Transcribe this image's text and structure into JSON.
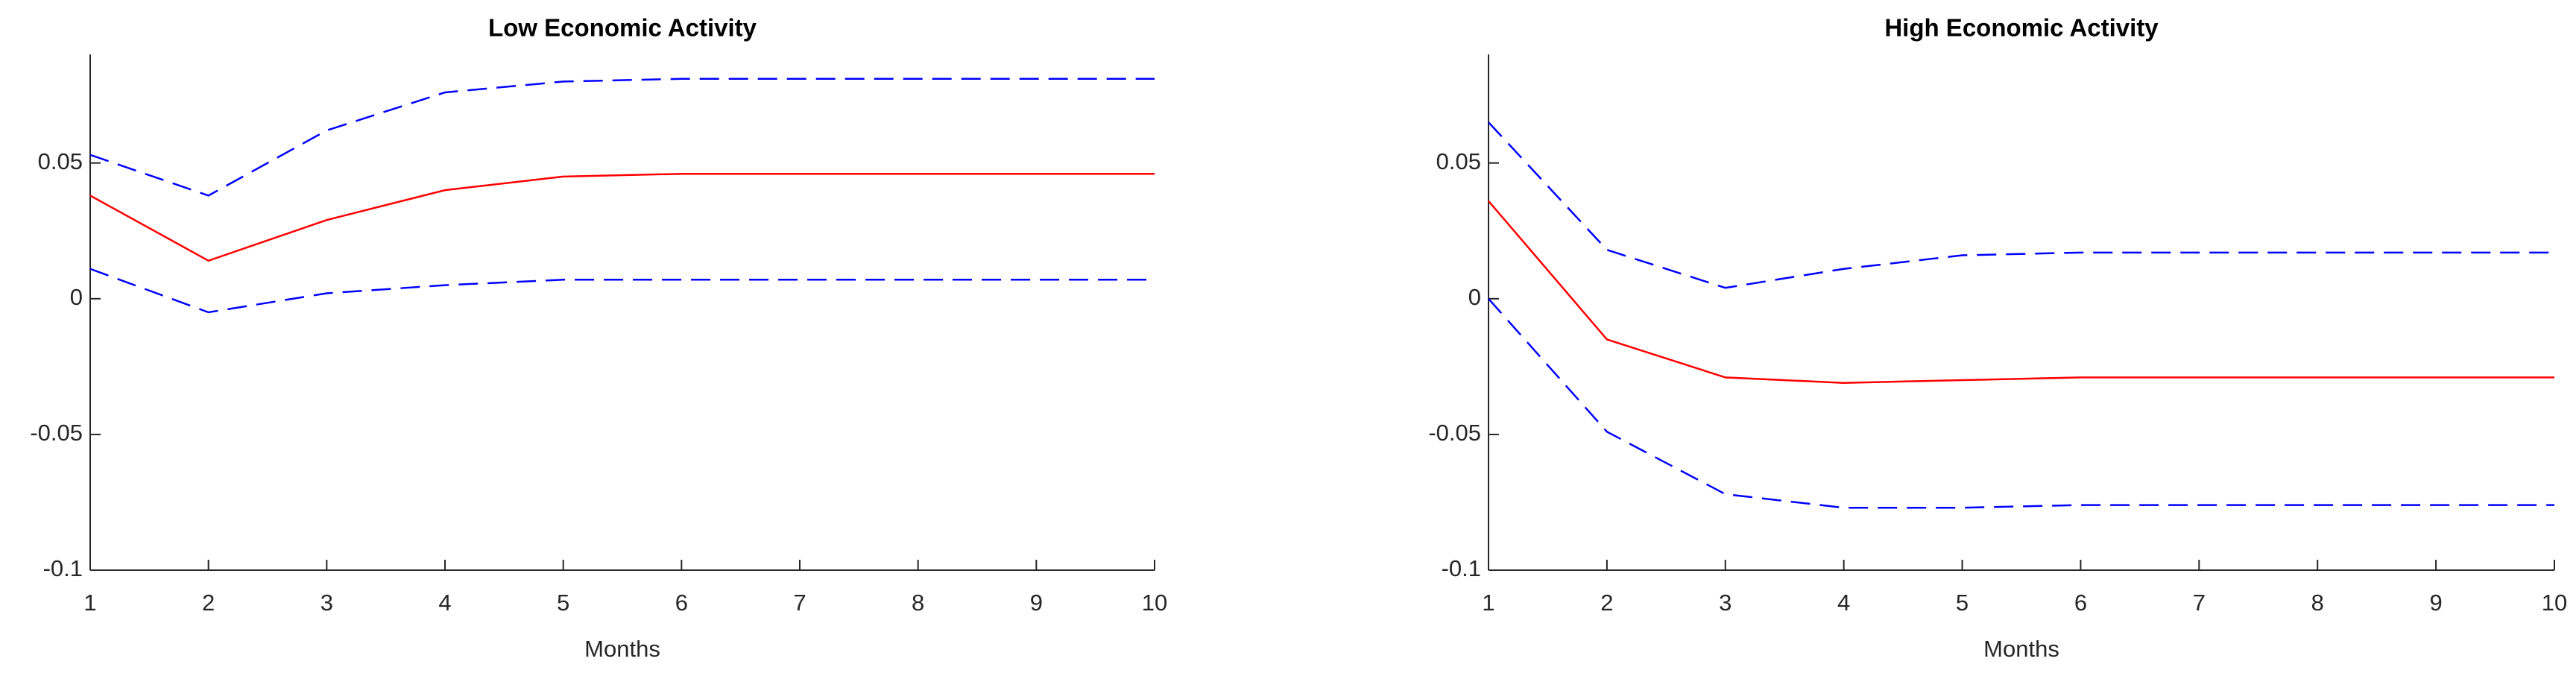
{
  "chart_data": [
    {
      "type": "line",
      "title": "Low Economic Activity",
      "xlabel": "Months",
      "x": [
        1,
        2,
        3,
        4,
        5,
        6,
        7,
        8,
        9,
        10
      ],
      "xlim": [
        1,
        10
      ],
      "xticks": [
        1,
        2,
        3,
        4,
        5,
        6,
        7,
        8,
        9,
        10
      ],
      "ylim": [
        -0.1,
        0.09
      ],
      "yticks": [
        -0.1,
        -0.05,
        0,
        0.05
      ],
      "series": [
        {
          "color": "#ff0000",
          "linestyle": "solid",
          "values": [
            0.038,
            0.014,
            0.029,
            0.04,
            0.045,
            0.046,
            0.046,
            0.046,
            0.046,
            0.046
          ]
        },
        {
          "color": "#0000ff",
          "linestyle": "dashed",
          "values": [
            0.053,
            0.038,
            0.062,
            0.076,
            0.08,
            0.081,
            0.081,
            0.081,
            0.081,
            0.081
          ]
        },
        {
          "color": "#0000ff",
          "linestyle": "dashed",
          "values": [
            0.011,
            -0.005,
            0.002,
            0.005,
            0.007,
            0.007,
            0.007,
            0.007,
            0.007,
            0.007
          ]
        }
      ]
    },
    {
      "type": "line",
      "title": "High Economic Activity",
      "xlabel": "Months",
      "x": [
        1,
        2,
        3,
        4,
        5,
        6,
        7,
        8,
        9,
        10
      ],
      "xlim": [
        1,
        10
      ],
      "xticks": [
        1,
        2,
        3,
        4,
        5,
        6,
        7,
        8,
        9,
        10
      ],
      "ylim": [
        -0.1,
        0.09
      ],
      "yticks": [
        -0.1,
        -0.05,
        0,
        0.05
      ],
      "series": [
        {
          "color": "#ff0000",
          "linestyle": "solid",
          "values": [
            0.036,
            -0.015,
            -0.029,
            -0.031,
            -0.03,
            -0.029,
            -0.029,
            -0.029,
            -0.029,
            -0.029
          ]
        },
        {
          "color": "#0000ff",
          "linestyle": "dashed",
          "values": [
            0.065,
            0.018,
            0.004,
            0.011,
            0.016,
            0.017,
            0.017,
            0.017,
            0.017,
            0.017
          ]
        },
        {
          "color": "#0000ff",
          "linestyle": "dashed",
          "values": [
            0.0,
            -0.049,
            -0.072,
            -0.077,
            -0.077,
            -0.076,
            -0.076,
            -0.076,
            -0.076,
            -0.076
          ]
        }
      ]
    }
  ]
}
